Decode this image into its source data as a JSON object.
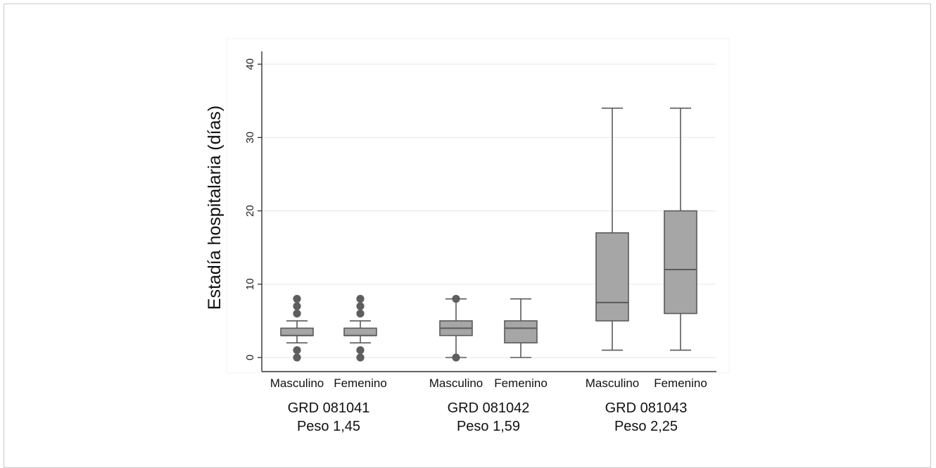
{
  "chart_data": {
    "type": "box",
    "title": "",
    "xlabel": "",
    "ylabel": "Estadía hospitalaria (días)",
    "ylim": [
      0,
      40
    ],
    "yticks": [
      0,
      10,
      20,
      30,
      40
    ],
    "grid": true,
    "groups": [
      {
        "label": "GRD 081041",
        "sublabel": "Peso 1,45",
        "boxes": [
          {
            "name": "Masculino",
            "whisker_low": 2,
            "q1": 3,
            "median": 3,
            "q3": 4,
            "whisker_high": 5,
            "outliers": [
              0,
              1,
              6,
              7,
              8
            ]
          },
          {
            "name": "Femenino",
            "whisker_low": 2,
            "q1": 3,
            "median": 3,
            "q3": 4,
            "whisker_high": 5,
            "outliers": [
              0,
              1,
              6,
              7,
              8
            ]
          }
        ]
      },
      {
        "label": "GRD 081042",
        "sublabel": "Peso 1,59",
        "boxes": [
          {
            "name": "Masculino",
            "whisker_low": 0,
            "q1": 3,
            "median": 4,
            "q3": 5,
            "whisker_high": 8,
            "outliers": [
              0,
              8
            ]
          },
          {
            "name": "Femenino",
            "whisker_low": 0,
            "q1": 2,
            "median": 4,
            "q3": 5,
            "whisker_high": 8,
            "outliers": []
          }
        ]
      },
      {
        "label": "GRD 081043",
        "sublabel": "Peso 2,25",
        "boxes": [
          {
            "name": "Masculino",
            "whisker_low": 1,
            "q1": 5,
            "median": 7.5,
            "q3": 17,
            "whisker_high": 34,
            "outliers": []
          },
          {
            "name": "Femenino",
            "whisker_low": 1,
            "q1": 6,
            "median": 12,
            "q3": 20,
            "whisker_high": 34,
            "outliers": []
          }
        ]
      }
    ],
    "colors": {
      "box_fill": "#a6a6a6",
      "box_stroke": "#5a5a5a",
      "outlier": "#5e5e5e",
      "grid": "#e3eef0",
      "axis": "#333333"
    }
  }
}
